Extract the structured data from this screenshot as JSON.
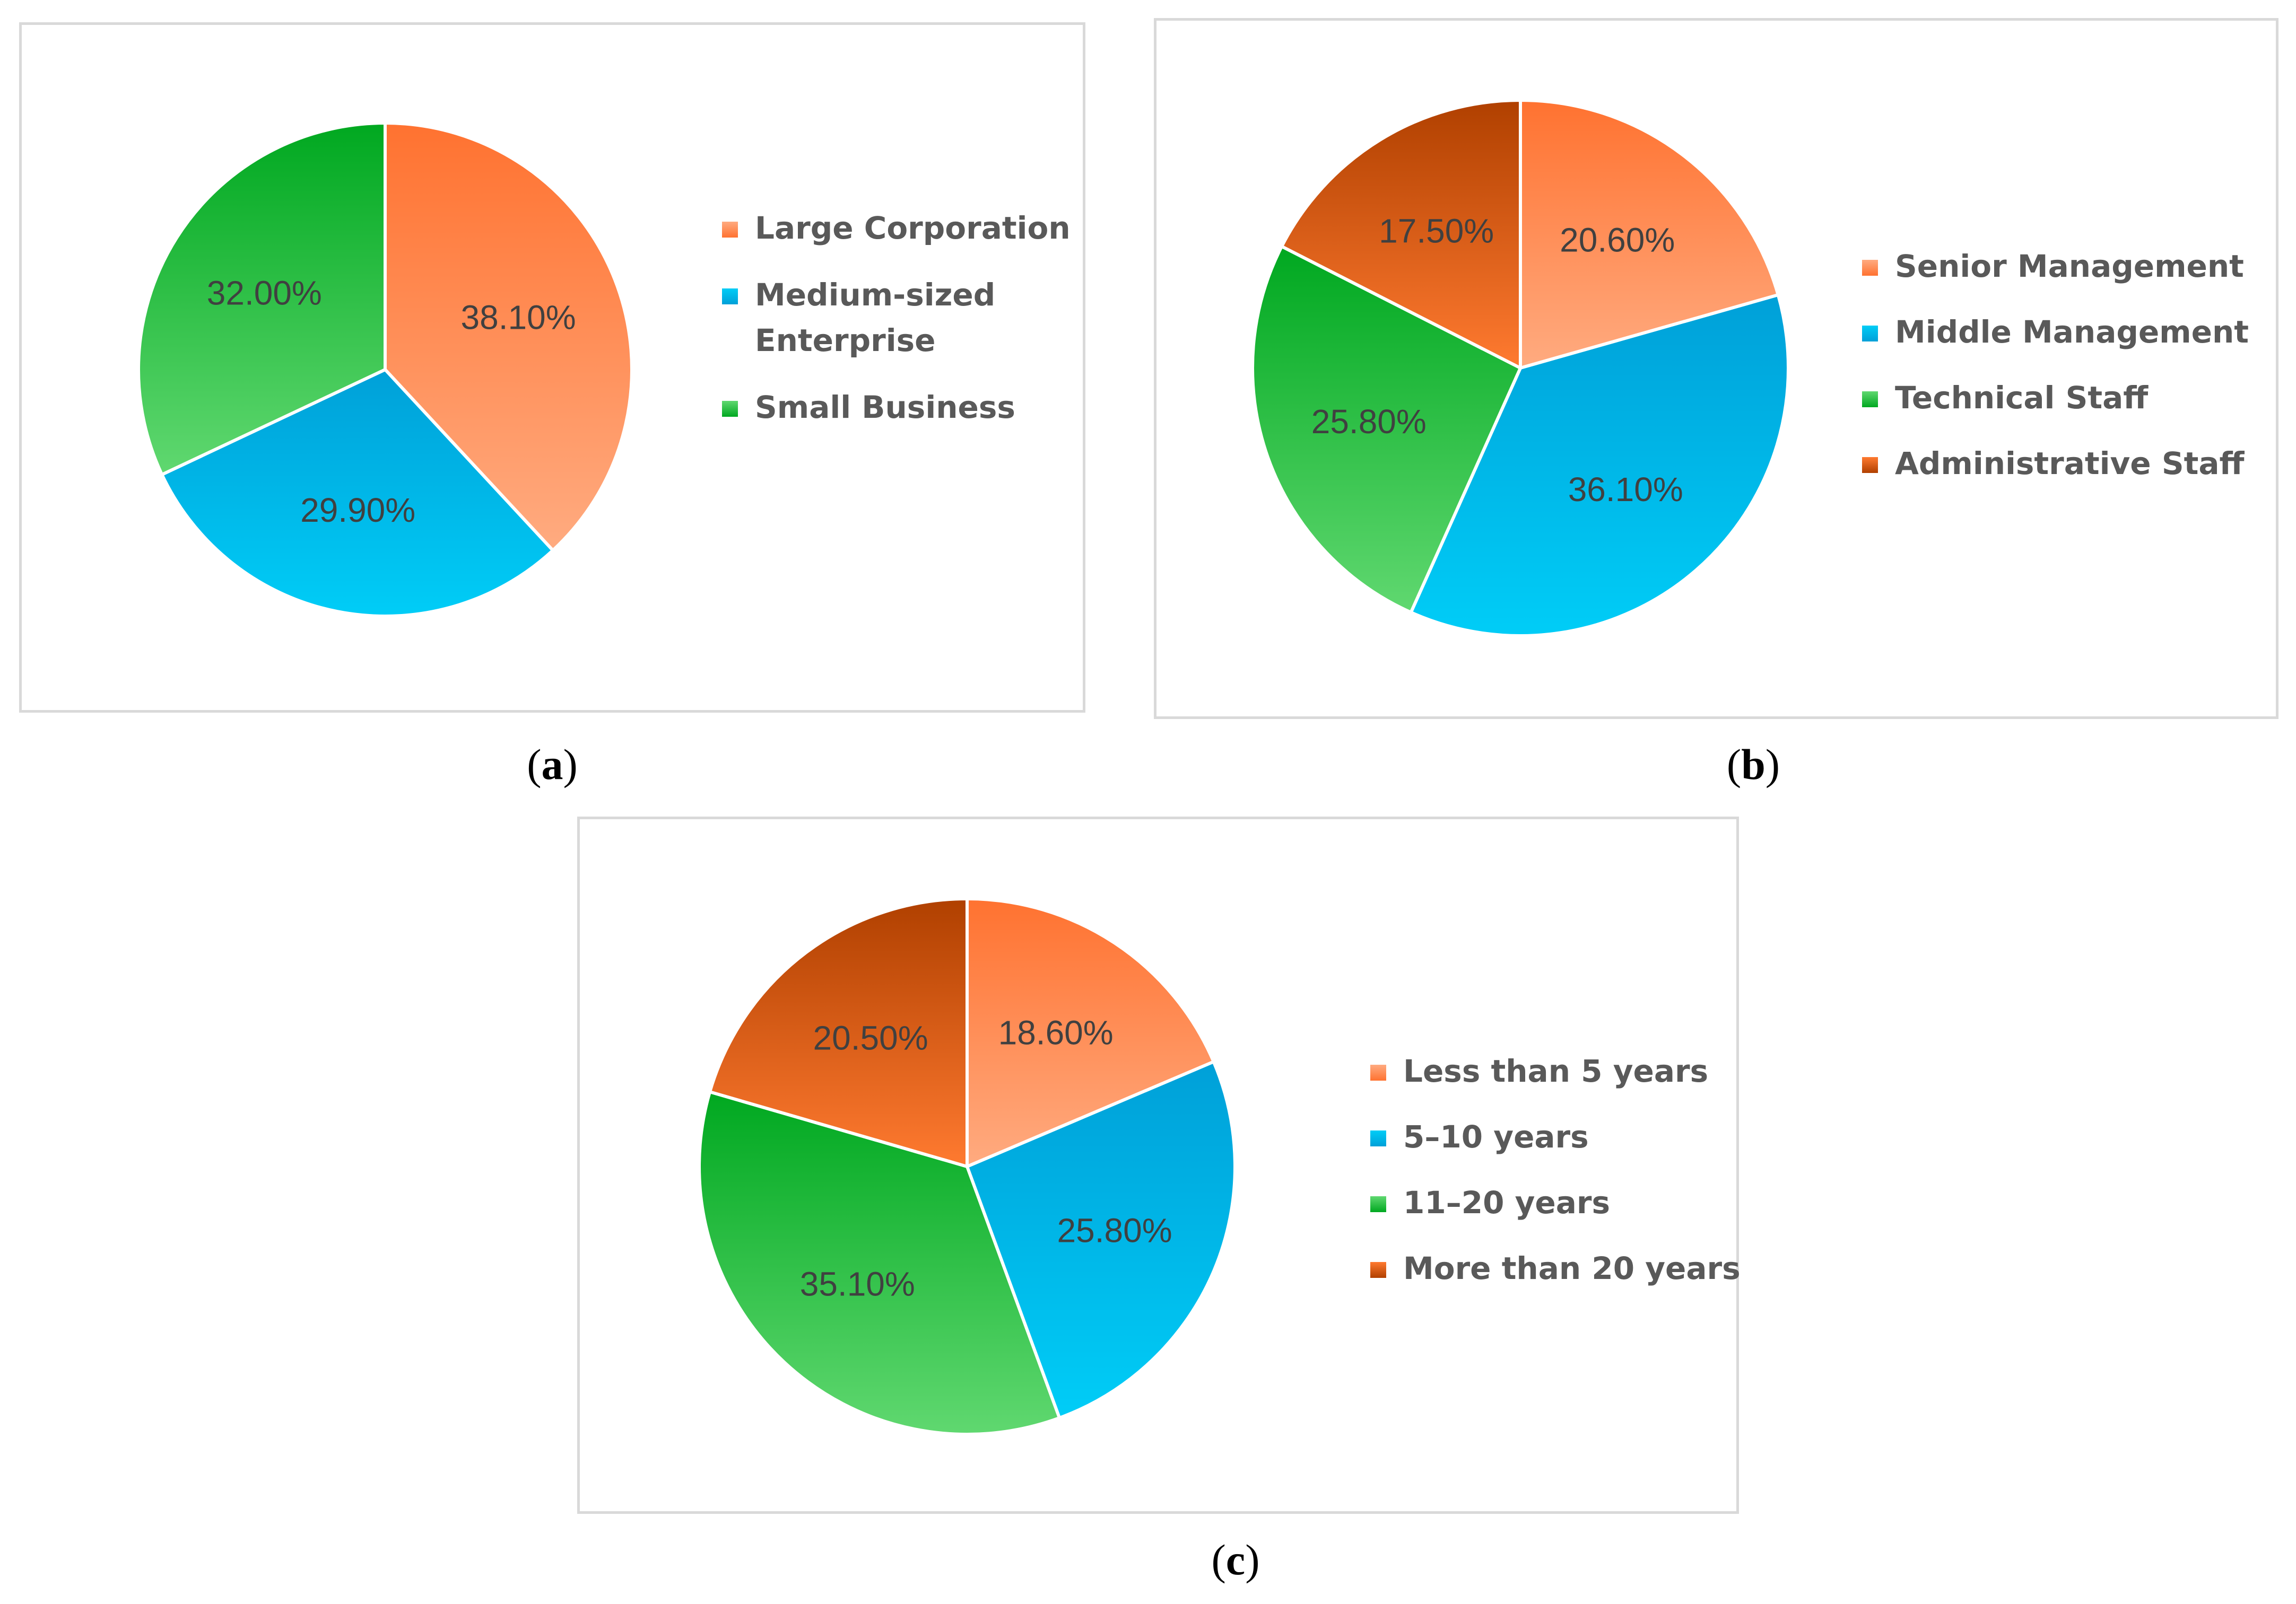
{
  "chart_data": [
    {
      "type": "pie",
      "id": "a",
      "caption_letter": "a",
      "slices": [
        {
          "label": "Large Corporation",
          "value": 38.1,
          "display": "38.10%",
          "color_top": "#ff7230",
          "color_bottom": "#ffab80"
        },
        {
          "label": "Medium-sized Enterprise",
          "value": 29.9,
          "display": "29.90%",
          "color_top": "#00a0d8",
          "color_bottom": "#00cdf7"
        },
        {
          "label": "Small Business",
          "value": 32.0,
          "display": "32.00%",
          "color_top": "#00a820",
          "color_bottom": "#60d870"
        }
      ],
      "start": "12 o'clock",
      "direction": "clockwise",
      "legend_position": "right"
    },
    {
      "type": "pie",
      "id": "b",
      "caption_letter": "b",
      "slices": [
        {
          "label": "Senior Management",
          "value": 20.6,
          "display": "20.60%",
          "color_top": "#ff7230",
          "color_bottom": "#ffab80"
        },
        {
          "label": "Middle Management",
          "value": 36.1,
          "display": "36.10%",
          "color_top": "#00a0d8",
          "color_bottom": "#00cdf7"
        },
        {
          "label": "Technical Staff",
          "value": 25.8,
          "display": "25.80%",
          "color_top": "#00a820",
          "color_bottom": "#60d870"
        },
        {
          "label": "Administrative Staff",
          "value": 17.5,
          "display": "17.50%",
          "color_top": "#b04000",
          "color_bottom": "#ff7a30"
        }
      ],
      "start": "12 o'clock",
      "direction": "clockwise",
      "legend_position": "right"
    },
    {
      "type": "pie",
      "id": "c",
      "caption_letter": "c",
      "slices": [
        {
          "label": "Less than 5 years",
          "value": 18.6,
          "display": "18.60%",
          "color_top": "#ff7230",
          "color_bottom": "#ffab80"
        },
        {
          "label": "5–10 years",
          "value": 25.8,
          "display": "25.80%",
          "color_top": "#00a0d8",
          "color_bottom": "#00cdf7"
        },
        {
          "label": "11–20 years",
          "value": 35.1,
          "display": "35.10%",
          "color_top": "#00a820",
          "color_bottom": "#60d870"
        },
        {
          "label": "More than 20 years",
          "value": 20.5,
          "display": "20.50%",
          "color_top": "#b04000",
          "color_bottom": "#ff7a30"
        }
      ],
      "start": "12 o'clock",
      "direction": "clockwise",
      "legend_position": "right"
    }
  ],
  "colors": {
    "panel_border": "#d9d9d9",
    "slice_label": "#404040",
    "legend_text": "#595959",
    "slice_separator": "#ffffff"
  }
}
